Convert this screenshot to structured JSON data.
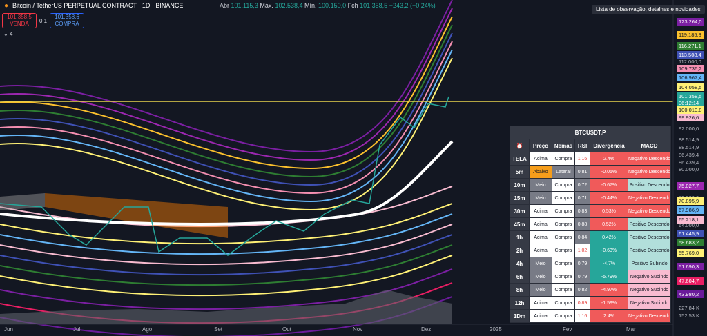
{
  "header": {
    "symbol": "Bitcoin / TetherUS PERPETUAL CONTRACT · 1D · BINANCE",
    "ohlc": [
      {
        "label": "Abr",
        "value": "101.115,3"
      },
      {
        "label": "Máx.",
        "value": "102.538,4"
      },
      {
        "label": "Mín.",
        "value": "100.150,0"
      },
      {
        "label": "Fch",
        "value": "101.358,5"
      }
    ],
    "change": "+243,2 (+0,24%)",
    "sell": {
      "price": "101.358,5",
      "label": "VENDA"
    },
    "spread": "0,1",
    "buy": {
      "price": "101.358,6",
      "label": "COMPRA"
    },
    "indicators": "4"
  },
  "watchlist": "Lista de observação, detalhes e novidades",
  "price_axis": [
    {
      "text": "123.264,0",
      "color": "#7b1fa2"
    },
    {
      "text": "119.185,3",
      "color": "#fbc02d"
    },
    {
      "text": "116.271,1",
      "color": "#2e7d32"
    },
    {
      "text": "113.508,4",
      "color": "#3f51b5"
    },
    "112.000,0",
    {
      "text": "109.736,2",
      "color": "#f48fb1"
    },
    {
      "text": "106.967,4",
      "color": "#64b5f6"
    },
    {
      "text": "104.058,5",
      "color": "#fff176"
    },
    {
      "text": "101.358,5",
      "color": "#26a69a"
    },
    {
      "text": "06:12:14",
      "color": "#26a69a"
    },
    {
      "text": "100.010,8",
      "color": "#fff176"
    },
    {
      "text": "99.926,6",
      "color": "#f8bbd0"
    },
    "92.000,0",
    "88.514,9",
    "88.514,9",
    "86.439,4",
    "86.439,4",
    "80.000,0",
    {
      "text": "75.027,7",
      "color": "#9c27b0"
    },
    "72.000,0",
    {
      "text": "70.895,9",
      "color": "#fff176"
    },
    {
      "text": "67.986,9",
      "color": "#64b5f6"
    },
    {
      "text": "65.218,1",
      "color": "#f8bbd0"
    },
    "64.000,0",
    {
      "text": "61.445,9",
      "color": "#3f51b5"
    },
    {
      "text": "58.683,2",
      "color": "#2e7d32"
    },
    {
      "text": "55.769,0",
      "color": "#fff176"
    },
    {
      "text": "51.690,3",
      "color": "#7b1fa2"
    },
    {
      "text": "47.604,7",
      "color": "#e91e63"
    },
    {
      "text": "43.980,2",
      "color": "#6a1b9a"
    },
    "227,84 K",
    "152,53 K"
  ],
  "time_axis": [
    "Jun",
    "Jul",
    "Ago",
    "Set",
    "Out",
    "Nov",
    "Dez",
    "2025",
    "Fev",
    "Mar"
  ],
  "table": {
    "title": "BTCUSDT.P",
    "columns": [
      "⏰",
      "Preço",
      "Nemas",
      "RSI",
      "Divergência",
      "MACD"
    ],
    "rows": [
      {
        "cells": [
          "TELA",
          "Acima",
          "Compra",
          "1.16",
          "2.4%",
          "Negativo Descendo"
        ],
        "fills": [
          "#363a45",
          "#ffffff",
          "#ffffff",
          "#ffffff",
          "#f05a5a",
          "#f05a5a"
        ]
      },
      {
        "cells": [
          "5m",
          "Abaixo",
          "Lateral",
          "0.81",
          "-0.05%",
          "Negativo Descendo"
        ],
        "fills": [
          "#363a45",
          "#f59d1b",
          "#787b86",
          "#787b86",
          "#f05a5a",
          "#f05a5a"
        ]
      },
      {
        "cells": [
          "10m",
          "Meio",
          "Compra",
          "0.72",
          "-0.67%",
          "Positivo Descendo"
        ],
        "fills": [
          "#363a45",
          "#787b86",
          "#ffffff",
          "#787b86",
          "#f05a5a",
          "#b2dfdb"
        ]
      },
      {
        "cells": [
          "15m",
          "Meio",
          "Compra",
          "0.71",
          "-0.44%",
          "Negativo Descendo"
        ],
        "fills": [
          "#363a45",
          "#787b86",
          "#ffffff",
          "#787b86",
          "#f05a5a",
          "#f05a5a"
        ]
      },
      {
        "cells": [
          "30m",
          "Acima",
          "Compra",
          "0.83",
          "0.53%",
          "Negativo Descendo"
        ],
        "fills": [
          "#363a45",
          "#ffffff",
          "#ffffff",
          "#787b86",
          "#f05a5a",
          "#f05a5a"
        ]
      },
      {
        "cells": [
          "45m",
          "Acima",
          "Compra",
          "0.88",
          "0.52%",
          "Positivo Descendo"
        ],
        "fills": [
          "#363a45",
          "#ffffff",
          "#ffffff",
          "#787b86",
          "#f05a5a",
          "#b2dfdb"
        ]
      },
      {
        "cells": [
          "1h",
          "Acima",
          "Compra",
          "0.84",
          "0.42%",
          "Positivo Descendo"
        ],
        "fills": [
          "#363a45",
          "#ffffff",
          "#ffffff",
          "#787b86",
          "#26a69a",
          "#b2dfdb"
        ]
      },
      {
        "cells": [
          "2h",
          "Acima",
          "Compra",
          "1.02",
          "-0.63%",
          "Positivo Descendo"
        ],
        "fills": [
          "#363a45",
          "#ffffff",
          "#ffffff",
          "#ffffff",
          "#26a69a",
          "#b2dfdb"
        ]
      },
      {
        "cells": [
          "4h",
          "Meio",
          "Compra",
          "0.79",
          "-4.7%",
          "Positivo Subindo"
        ],
        "fills": [
          "#363a45",
          "#787b86",
          "#ffffff",
          "#787b86",
          "#26a69a",
          "#b2dfdb"
        ]
      },
      {
        "cells": [
          "6h",
          "Meio",
          "Compra",
          "0.79",
          "-5.79%",
          "Negativo Subindo"
        ],
        "fills": [
          "#363a45",
          "#787b86",
          "#ffffff",
          "#787b86",
          "#26a69a",
          "#f8bbd0"
        ]
      },
      {
        "cells": [
          "8h",
          "Meio",
          "Compra",
          "0.82",
          "-4.97%",
          "Negativo Subindo"
        ],
        "fills": [
          "#363a45",
          "#787b86",
          "#ffffff",
          "#787b86",
          "#f05a5a",
          "#f8bbd0"
        ]
      },
      {
        "cells": [
          "12h",
          "Acima",
          "Compra",
          "0.89",
          "-1.59%",
          "Negativo Subindo"
        ],
        "fills": [
          "#363a45",
          "#ffffff",
          "#ffffff",
          "#ffffff",
          "#f05a5a",
          "#f8bbd0"
        ]
      },
      {
        "cells": [
          "1Dm",
          "Acima",
          "Compra",
          "1.16",
          "2.4%",
          "Negativo Descendo"
        ],
        "fills": [
          "#363a45",
          "#ffffff",
          "#ffffff",
          "#ffffff",
          "#f05a5a",
          "#f05a5a"
        ]
      }
    ]
  }
}
